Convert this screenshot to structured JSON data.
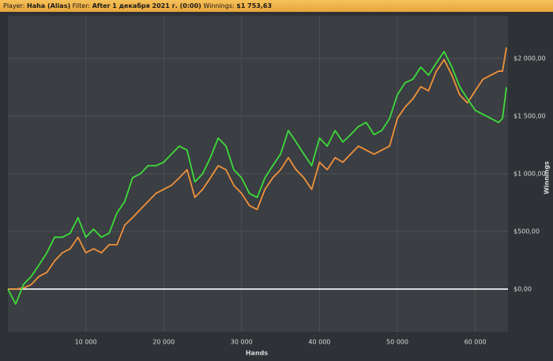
{
  "header": {
    "player_label": "Player:",
    "player": "Haha (Alias)",
    "filter_label": "Filter:",
    "filter": "After 1 декабря 2021 г. (0:00)",
    "winnings_label": "Winnings:",
    "winnings": "$1 753,63"
  },
  "chart_data": {
    "type": "line",
    "x_label": "Hands",
    "y_label": "Winnings",
    "grid": true,
    "xlim": [
      0,
      64200
    ],
    "ylim": [
      -370,
      2370
    ],
    "xticks": [
      {
        "value": 10000,
        "label": "10 000"
      },
      {
        "value": 20000,
        "label": "20 000"
      },
      {
        "value": 30000,
        "label": "30 000"
      },
      {
        "value": 40000,
        "label": "40 000"
      },
      {
        "value": 50000,
        "label": "50 000"
      },
      {
        "value": 60000,
        "label": "60 000"
      }
    ],
    "yticks": [
      {
        "value": 0,
        "label": "$0,00"
      },
      {
        "value": 500,
        "label": "$500,00"
      },
      {
        "value": 1000,
        "label": "$1 000,00"
      },
      {
        "value": 1500,
        "label": "$1 500,00"
      },
      {
        "value": 2000,
        "label": "$2 000,00"
      }
    ],
    "x": [
      0,
      1000,
      2000,
      3000,
      4000,
      5000,
      6000,
      7000,
      8000,
      9000,
      10000,
      11000,
      12000,
      13000,
      14000,
      15000,
      16000,
      17000,
      18000,
      19000,
      20000,
      21000,
      22000,
      23000,
      24000,
      25000,
      26000,
      27000,
      28000,
      29000,
      30000,
      31000,
      32000,
      33000,
      34000,
      35000,
      36000,
      37000,
      38000,
      39000,
      40000,
      41000,
      42000,
      43000,
      44000,
      45000,
      46000,
      47000,
      48000,
      49000,
      50000,
      51000,
      52000,
      53000,
      54000,
      55000,
      56000,
      57000,
      58000,
      59000,
      60000,
      61000,
      62000,
      63000,
      63500,
      64000
    ],
    "series": [
      {
        "color": "#f0923a",
        "values": [
          0,
          0,
          10,
          40,
          110,
          145,
          245,
          315,
          350,
          450,
          315,
          350,
          315,
          385,
          385,
          555,
          620,
          690,
          760,
          830,
          865,
          900,
          965,
          1035,
          795,
          865,
          965,
          1070,
          1035,
          900,
          830,
          725,
          690,
          865,
          965,
          1035,
          1140,
          1035,
          965,
          865,
          1100,
          1035,
          1140,
          1100,
          1170,
          1240,
          1205,
          1170,
          1205,
          1240,
          1480,
          1580,
          1650,
          1755,
          1720,
          1890,
          1990,
          1855,
          1685,
          1615,
          1720,
          1820,
          1855,
          1890,
          1890,
          2095
        ]
      },
      {
        "color": "#3ddc3a",
        "values": [
          0,
          -130,
          40,
          110,
          210,
          315,
          450,
          450,
          485,
          620,
          450,
          520,
          450,
          485,
          660,
          760,
          965,
          1000,
          1070,
          1070,
          1100,
          1170,
          1240,
          1205,
          930,
          1000,
          1140,
          1310,
          1240,
          1035,
          965,
          830,
          795,
          965,
          1070,
          1170,
          1375,
          1275,
          1170,
          1070,
          1310,
          1240,
          1375,
          1275,
          1340,
          1410,
          1445,
          1340,
          1375,
          1480,
          1685,
          1790,
          1820,
          1925,
          1855,
          1960,
          2060,
          1925,
          1755,
          1650,
          1550,
          1515,
          1480,
          1445,
          1480,
          1750
        ]
      }
    ]
  }
}
